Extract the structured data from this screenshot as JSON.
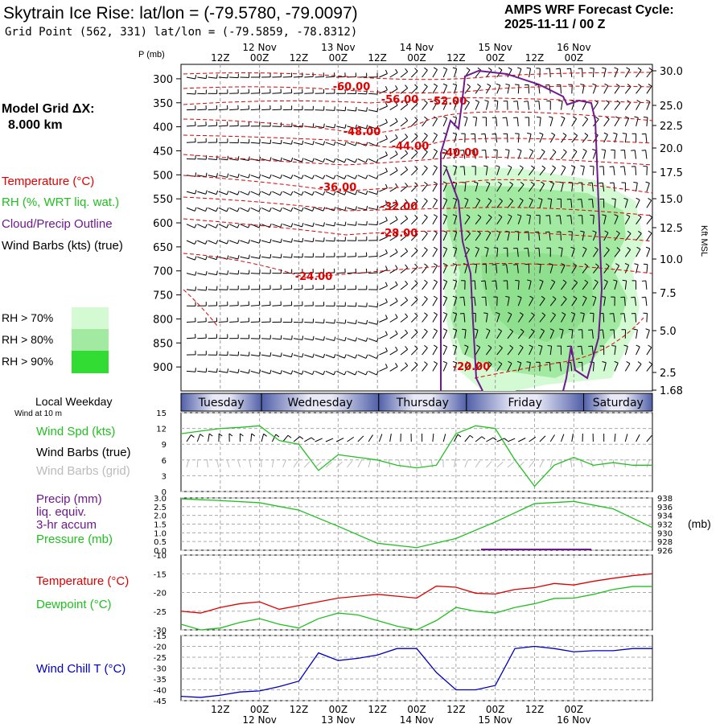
{
  "header": {
    "title": "Skytrain Ice Rise:  lat/lon = (-79.5780, -79.0097)",
    "grid_point": "Grid Point (562, 331) lat/lon = (-79.5859, -78.8312)",
    "cycle_line1": "AMPS WRF Forecast Cycle:",
    "cycle_line2": "2025-11-11 / 00  Z"
  },
  "legend": {
    "model_grid_label": "Model Grid ΔX:",
    "model_grid_value": "8.000 km",
    "temperature": "Temperature (°C)",
    "rh": "RH (%, WRT liq. wat.)",
    "cloud": "Cloud/Precip Outline",
    "wind_barbs": "Wind Barbs (kts) (true)",
    "rh70": "RH > 70%",
    "rh80": "RH > 80%",
    "rh90": "RH > 90%",
    "rh_colors": [
      "#d4fad4",
      "#a2eaa2",
      "#32dc32"
    ],
    "local_weekday": "Local Weekday",
    "wind_at_10m": "Wind at 10 m",
    "wind_spd": "Wind Spd (kts)",
    "wind_barbs_true": "Wind Barbs (true)",
    "wind_barbs_grid": "Wind Barbs (grid)",
    "precip1": "Precip (mm)",
    "precip2": "liq. equiv.",
    "precip3": "3-hr accum",
    "pressure": "Pressure (mb)",
    "temp2": "Temperature (°C)",
    "dewpoint": "Dewpoint (°C)",
    "windchill": "Wind Chill T (°C)",
    "mb_unit": "(mb)",
    "kft_msl": "Kft MSL",
    "p_mb": "P (mb)"
  },
  "colors": {
    "temp": "#e00000",
    "rh": "#20c020",
    "cloud": "#701890",
    "windchill": "#0000c0",
    "weekday": "#5060a0"
  },
  "chart_data": [
    {
      "id": "upper-air-cross-section",
      "type": "cross-section",
      "x_hours": [
        0,
        72
      ],
      "time_ticks": [
        {
          "h": 6,
          "top": "12Z",
          "bottom": "12Z"
        },
        {
          "h": 12,
          "top": "00Z",
          "bottom": "00Z",
          "date": "12 Nov"
        },
        {
          "h": 18,
          "top": "12Z",
          "bottom": "12Z"
        },
        {
          "h": 24,
          "top": "00Z",
          "bottom": "00Z",
          "date": "13 Nov"
        },
        {
          "h": 30,
          "top": "12Z",
          "bottom": "12Z"
        },
        {
          "h": 36,
          "top": "00Z",
          "bottom": "00Z",
          "date": "14 Nov"
        },
        {
          "h": 42,
          "top": "12Z",
          "bottom": "12Z"
        },
        {
          "h": 48,
          "top": "00Z",
          "bottom": "00Z",
          "date": "15 Nov"
        },
        {
          "h": 54,
          "top": "12Z",
          "bottom": "12Z"
        },
        {
          "h": 60,
          "top": "00Z",
          "bottom": "00Z",
          "date": "16 Nov"
        }
      ],
      "pressure_ticks": [
        300,
        350,
        400,
        450,
        500,
        550,
        600,
        650,
        700,
        750,
        800,
        850,
        900
      ],
      "height_ticks_kft": [
        "30.0",
        "25.0",
        "22.5",
        "20.0",
        "17.5",
        "15.0",
        "12.5",
        "10.0",
        "7.5",
        "5.0",
        "2.5",
        "1.68"
      ],
      "temperature_labels": [
        "-60.00",
        "-56.00",
        "-52.00",
        "-48.00",
        "-44.00",
        "-40.00",
        "-36.00",
        "-32.00",
        "-28.00",
        "-24.00",
        "-20.00"
      ]
    },
    {
      "id": "weekday-bar",
      "type": "category-strip",
      "categories": [
        "Tuesday",
        "Wednesday",
        "Thursday",
        "Friday",
        "Saturday"
      ]
    },
    {
      "id": "wind-speed",
      "type": "line",
      "x_hours": [
        0,
        3,
        6,
        9,
        12,
        15,
        18,
        21,
        24,
        27,
        30,
        33,
        36,
        39,
        42,
        45,
        48,
        51,
        54,
        57,
        60,
        63,
        66,
        69,
        72
      ],
      "series": [
        {
          "name": "Wind Spd (kts)",
          "values": [
            11,
            11.5,
            12,
            12.2,
            12.5,
            9.7,
            9,
            4,
            7,
            6.5,
            6,
            5,
            4.5,
            5,
            11,
            12.5,
            12,
            6,
            1,
            5,
            6.5,
            5,
            5.5,
            5,
            5
          ]
        }
      ],
      "ylim": [
        0,
        15
      ],
      "yticks": [
        "0",
        "3",
        "6",
        "9",
        "12",
        "15"
      ]
    },
    {
      "id": "precip-pressure",
      "type": "line",
      "precip_ylim": [
        0,
        3.0
      ],
      "precip_yticks": [
        "0.0",
        "0.5",
        "1.0",
        "1.5",
        "2.0",
        "2.5",
        "3.0"
      ],
      "pressure_ylim": [
        926,
        938
      ],
      "pressure_yticks": [
        "926",
        "928",
        "930",
        "932",
        "934",
        "936",
        "938"
      ],
      "x_hours": [
        0,
        6,
        12,
        18,
        24,
        30,
        36,
        42,
        48,
        54,
        60,
        66,
        72
      ],
      "pressure": [
        937.8,
        937.4,
        936.9,
        935.2,
        931.5,
        927.6,
        926.6,
        928.7,
        932.5,
        936.7,
        937.2,
        935.5,
        931.2
      ],
      "precip": [
        0,
        0,
        0,
        0,
        0,
        0,
        0,
        0,
        0,
        0,
        0,
        0,
        0
      ]
    },
    {
      "id": "temperature-dewpoint",
      "type": "line",
      "ylim": [
        -30,
        -10
      ],
      "yticks": [
        "-30",
        "-25",
        "-20",
        "-15",
        "-10"
      ],
      "x_hours": [
        0,
        3,
        6,
        9,
        12,
        15,
        18,
        21,
        24,
        27,
        30,
        33,
        36,
        39,
        42,
        45,
        48,
        51,
        54,
        57,
        60,
        63,
        66,
        69,
        72
      ],
      "series": [
        {
          "name": "Temperature",
          "values": [
            -25,
            -25.5,
            -24,
            -23,
            -22.5,
            -24.5,
            -23.5,
            -22.5,
            -21.5,
            -21,
            -20.5,
            -21,
            -21.5,
            -18.3,
            -18.6,
            -20.2,
            -20.4,
            -19.2,
            -18.7,
            -17.6,
            -18,
            -17,
            -16.2,
            -15.5,
            -15
          ]
        },
        {
          "name": "Dewpoint",
          "values": [
            -28.5,
            -30,
            -29.5,
            -28,
            -27,
            -28.5,
            -29.5,
            -27,
            -25.5,
            -26,
            -27.5,
            -29,
            -30,
            -27.5,
            -24,
            -25,
            -25.5,
            -24,
            -23,
            -21.6,
            -21.5,
            -20.5,
            -19.2,
            -18.4,
            -18.4
          ]
        }
      ]
    },
    {
      "id": "wind-chill",
      "type": "line",
      "ylim": [
        -45,
        -15
      ],
      "yticks": [
        "-45",
        "-40",
        "-35",
        "-30",
        "-25",
        "-20",
        "-15"
      ],
      "x_hours": [
        0,
        3,
        6,
        9,
        12,
        15,
        18,
        21,
        24,
        27,
        30,
        33,
        36,
        39,
        42,
        45,
        48,
        51,
        54,
        57,
        60,
        63,
        66,
        69,
        72
      ],
      "series": [
        {
          "name": "Wind Chill",
          "values": [
            -43,
            -43.5,
            -42.5,
            -41,
            -40.5,
            -38.5,
            -36,
            -23,
            -26.5,
            -25.5,
            -24,
            -21,
            -21,
            -32,
            -40,
            -40,
            -38,
            -21,
            -20,
            -21,
            -22.5,
            -22,
            -22,
            -21,
            -21
          ]
        }
      ]
    }
  ]
}
